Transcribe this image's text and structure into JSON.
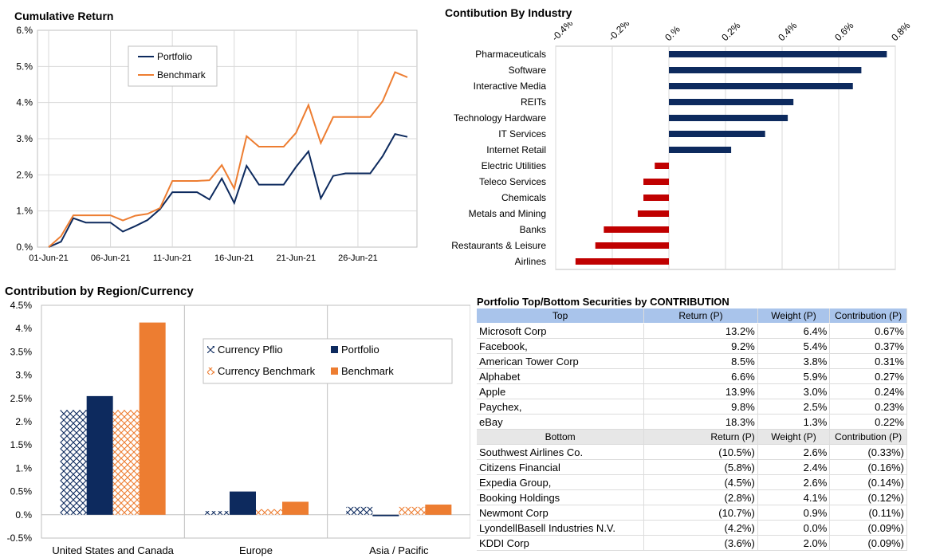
{
  "colors": {
    "portfolio": "#0d2a5e",
    "benchmark": "#ed7d31",
    "neg": "#c00000",
    "grid": "#d9d9d9",
    "header_top": "#a9c4eb",
    "header_bot": "#e7e7e7"
  },
  "chart_data": [
    {
      "id": "cumulative",
      "type": "line",
      "title": "Cumulative Return",
      "x_tick_labels": [
        "01-Jun-21",
        "06-Jun-21",
        "11-Jun-21",
        "16-Jun-21",
        "21-Jun-21",
        "26-Jun-21"
      ],
      "y_tick_labels": [
        "0.%",
        "1.%",
        "2.%",
        "3.%",
        "4.%",
        "5.%",
        "6.%"
      ],
      "ylim": [
        0,
        6
      ],
      "legend_position": "top-left",
      "series": [
        {
          "name": "Portfolio",
          "values": [
            0,
            0.15,
            0.8,
            0.68,
            0.68,
            0.68,
            0.43,
            0.58,
            0.75,
            1.05,
            1.52,
            1.52,
            1.52,
            1.32,
            1.9,
            1.22,
            2.25,
            1.73,
            1.73,
            1.73,
            2.22,
            2.65,
            1.35,
            1.97,
            2.04,
            2.04,
            2.04,
            2.52,
            3.13,
            3.05
          ]
        },
        {
          "name": "Benchmark",
          "values": [
            0,
            0.3,
            0.88,
            0.88,
            0.88,
            0.88,
            0.74,
            0.87,
            0.92,
            1.08,
            1.83,
            1.83,
            1.83,
            1.85,
            2.27,
            1.62,
            3.07,
            2.78,
            2.78,
            2.78,
            3.16,
            3.93,
            2.88,
            3.6,
            3.6,
            3.6,
            3.6,
            4.04,
            4.84,
            4.7
          ]
        }
      ]
    },
    {
      "id": "industry",
      "type": "bar",
      "orientation": "horizontal",
      "title": "Contibution By Industry",
      "x_tick_labels": [
        "-0.4%",
        "-0.2%",
        "0.%",
        "0.2%",
        "0.4%",
        "0.6%",
        "0.8%"
      ],
      "xlim": [
        -0.004,
        0.008
      ],
      "categories": [
        "Pharmaceuticals",
        "Software",
        "Interactive Media",
        "REITs",
        "Technology Hardware",
        "IT Services",
        "Internet Retail",
        "Electric Utilities",
        "Teleco Services",
        "Chemicals",
        "Metals and Mining",
        "Banks",
        "Restaurants & Leisure",
        "Airlines"
      ],
      "values": [
        0.0077,
        0.0068,
        0.0065,
        0.0044,
        0.0042,
        0.0034,
        0.0022,
        -0.0005,
        -0.0009,
        -0.0009,
        -0.0011,
        -0.0023,
        -0.0026,
        -0.0033
      ]
    },
    {
      "id": "region",
      "type": "bar",
      "title": "Contribution by Region/Currency",
      "categories": [
        "United States and Canada",
        "Europe",
        "Asia / Pacific"
      ],
      "y_tick_labels": [
        "-0.5%",
        "0.%",
        "0.5%",
        "1.%",
        "1.5%",
        "2.%",
        "2.5%",
        "3.%",
        "3.5%",
        "4.%",
        "4.5%"
      ],
      "ylim": [
        -0.5,
        4.5
      ],
      "legend_position": "top-right",
      "series": [
        {
          "name": "Currency Pflio",
          "values": [
            2.25,
            0.08,
            0.17
          ]
        },
        {
          "name": "Portfolio",
          "values": [
            2.55,
            0.5,
            -0.03
          ]
        },
        {
          "name": "Currency Benchmark",
          "values": [
            2.25,
            0.12,
            0.17
          ]
        },
        {
          "name": "Benchmark",
          "values": [
            4.13,
            0.28,
            0.22
          ]
        }
      ]
    }
  ],
  "table": {
    "title": "Portfolio Top/Bottom Securities by CONTRIBUTION",
    "top_header": [
      "Top",
      "Return (P)",
      "Weight (P)",
      "Contribution (P)"
    ],
    "top_rows": [
      [
        "Microsoft Corp",
        "13.2%",
        "6.4%",
        "0.67%"
      ],
      [
        "Facebook,",
        "9.2%",
        "5.4%",
        "0.37%"
      ],
      [
        "American Tower Corp",
        "8.5%",
        "3.8%",
        "0.31%"
      ],
      [
        "Alphabet",
        "6.6%",
        "5.9%",
        "0.27%"
      ],
      [
        "Apple",
        "13.9%",
        "3.0%",
        "0.24%"
      ],
      [
        "Paychex,",
        "9.8%",
        "2.5%",
        "0.23%"
      ],
      [
        "eBay",
        "18.3%",
        "1.3%",
        "0.22%"
      ]
    ],
    "bottom_header": [
      "Bottom",
      "Return (P)",
      "Weight (P)",
      "Contribution (P)"
    ],
    "bottom_rows": [
      [
        "Southwest Airlines Co.",
        "(10.5%)",
        "2.6%",
        "(0.33%)"
      ],
      [
        "Citizens Financial",
        "(5.8%)",
        "2.4%",
        "(0.16%)"
      ],
      [
        "Expedia Group,",
        "(4.5%)",
        "2.6%",
        "(0.14%)"
      ],
      [
        "Booking Holdings",
        "(2.8%)",
        "4.1%",
        "(0.12%)"
      ],
      [
        "Newmont Corp",
        "(10.7%)",
        "0.9%",
        "(0.11%)"
      ],
      [
        "LyondellBasell Industries N.V.",
        "(4.2%)",
        "0.0%",
        "(0.09%)"
      ],
      [
        "KDDI Corp",
        "(3.6%)",
        "2.0%",
        "(0.09%)"
      ]
    ]
  }
}
